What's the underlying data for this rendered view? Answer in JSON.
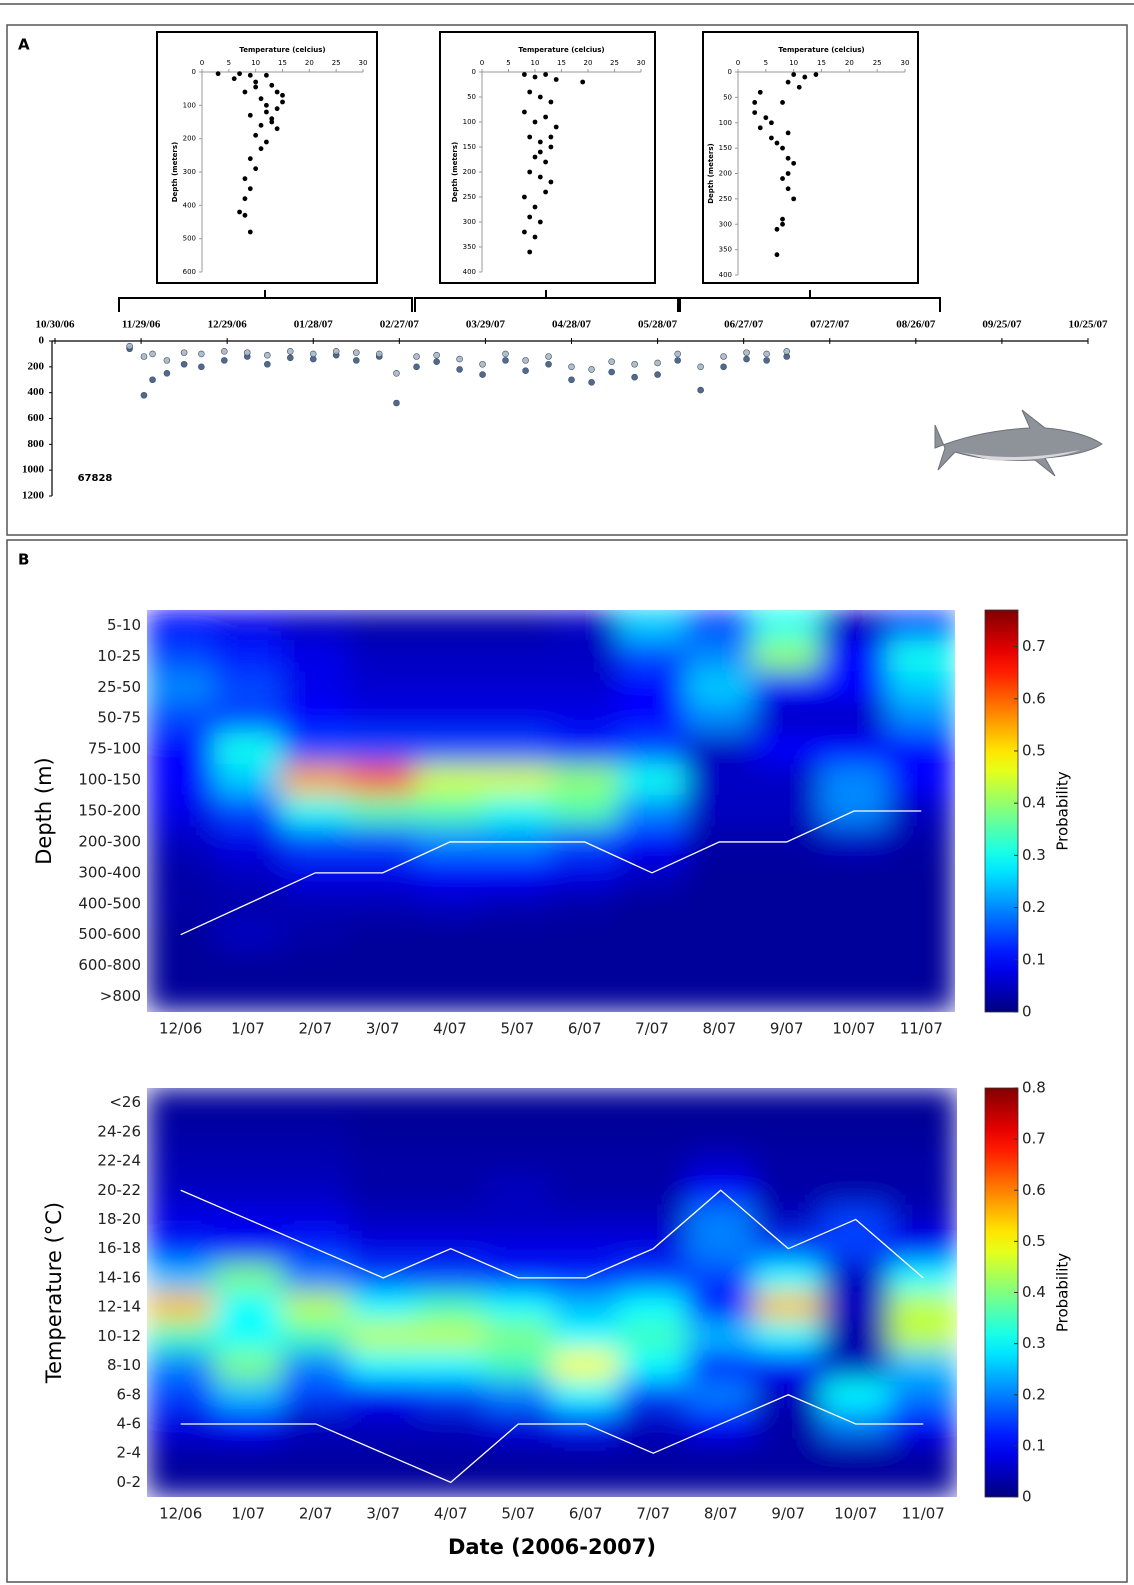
{
  "chart_data": [
    {
      "type": "scatter",
      "x_axis": "top",
      "y_reversed": true,
      "xlabel": "Temperature (celcius)",
      "ylabel": "Depth (meters)",
      "color": "#000000",
      "xlim": [
        0,
        30
      ],
      "xticks": [
        0,
        5,
        10,
        15,
        20,
        25,
        30
      ],
      "ylim": [
        0,
        600
      ],
      "yticks": [
        0,
        100,
        200,
        300,
        400,
        500,
        600
      ],
      "series": [
        {
          "color": "#000000",
          "x": [
            3,
            7,
            9,
            12,
            10,
            13,
            8,
            14,
            11,
            15,
            12,
            14,
            9,
            13,
            11,
            14,
            10,
            12,
            11,
            9,
            10,
            8,
            9,
            8,
            7,
            9,
            8,
            13,
            15,
            12,
            6,
            10
          ],
          "values": [
            5,
            5,
            10,
            10,
            30,
            40,
            60,
            60,
            80,
            90,
            100,
            110,
            130,
            140,
            160,
            170,
            190,
            210,
            230,
            260,
            290,
            320,
            350,
            380,
            420,
            480,
            430,
            150,
            70,
            120,
            20,
            45
          ]
        }
      ]
    },
    {
      "type": "scatter",
      "x_axis": "top",
      "y_reversed": true,
      "xlabel": "Temperature (celcius)",
      "ylabel": "Depth (meters)",
      "xlim": [
        0,
        30
      ],
      "xticks": [
        0,
        5,
        10,
        15,
        20,
        25,
        30
      ],
      "ylim": [
        0,
        400
      ],
      "yticks": [
        0,
        50,
        100,
        150,
        200,
        250,
        300,
        350,
        400
      ],
      "series": [
        {
          "color": "#000000",
          "x": [
            8,
            10,
            12,
            14,
            19,
            9,
            11,
            13,
            8,
            12,
            10,
            14,
            9,
            11,
            13,
            10,
            12,
            9,
            11,
            13,
            8,
            12,
            10,
            9,
            11,
            8,
            10,
            9,
            13,
            11
          ],
          "values": [
            5,
            10,
            5,
            15,
            20,
            40,
            50,
            60,
            80,
            90,
            100,
            110,
            130,
            140,
            150,
            170,
            180,
            200,
            210,
            220,
            250,
            240,
            270,
            290,
            300,
            320,
            330,
            360,
            130,
            160
          ]
        }
      ]
    },
    {
      "type": "scatter",
      "x_axis": "top",
      "y_reversed": true,
      "xlabel": "Temperature (celcius)",
      "ylabel": "Depth (meters)",
      "xlim": [
        0,
        30
      ],
      "xticks": [
        0,
        5,
        10,
        15,
        20,
        25,
        30
      ],
      "ylim": [
        0,
        400
      ],
      "yticks": [
        0,
        50,
        100,
        150,
        200,
        250,
        300,
        350,
        400
      ],
      "series": [
        {
          "color": "#000000",
          "x": [
            10,
            12,
            14,
            9,
            11,
            4,
            3,
            3,
            5,
            4,
            6,
            8,
            9,
            7,
            8,
            9,
            10,
            9,
            8,
            9,
            10,
            8,
            7,
            8,
            7,
            6
          ],
          "values": [
            5,
            10,
            5,
            20,
            30,
            40,
            60,
            80,
            90,
            110,
            100,
            60,
            120,
            140,
            150,
            170,
            180,
            200,
            210,
            230,
            250,
            290,
            310,
            300,
            360,
            130
          ]
        }
      ]
    },
    {
      "type": "scatter",
      "x_axis": "top",
      "y_reversed": true,
      "panel_label": "A",
      "annotation": "67828",
      "xlim": [
        "10/30/06",
        "10/25/07"
      ],
      "xticks": [
        "10/30/06",
        "11/29/06",
        "12/29/06",
        "01/28/07",
        "02/27/07",
        "03/29/07",
        "04/28/07",
        "05/28/07",
        "06/27/07",
        "07/27/07",
        "08/26/07",
        "09/25/07",
        "10/25/07"
      ],
      "ylim": [
        0,
        1200
      ],
      "yticks": [
        0,
        200,
        400,
        600,
        800,
        1000,
        1200
      ],
      "x": [
        "11/25/06",
        "11/30/06",
        "12/03/06",
        "12/08/06",
        "12/14/06",
        "12/20/06",
        "12/28/06",
        "01/05/07",
        "01/12/07",
        "01/20/07",
        "01/28/07",
        "02/05/07",
        "02/12/07",
        "02/20/07",
        "02/26/07",
        "03/05/07",
        "03/12/07",
        "03/20/07",
        "03/28/07",
        "04/05/07",
        "04/12/07",
        "04/20/07",
        "04/28/07",
        "05/05/07",
        "05/12/07",
        "05/20/07",
        "05/28/07",
        "06/04/07",
        "06/12/07",
        "06/20/07",
        "06/28/07",
        "07/05/07",
        "07/12/07"
      ],
      "series": [
        {
          "color": "#3d5a80",
          "values": [
            60,
            420,
            300,
            250,
            180,
            200,
            150,
            120,
            180,
            130,
            140,
            110,
            150,
            120,
            480,
            200,
            160,
            220,
            260,
            150,
            230,
            180,
            300,
            320,
            240,
            280,
            260,
            150,
            380,
            200,
            140,
            150,
            120
          ]
        },
        {
          "color": "#a9b6c4",
          "values": [
            40,
            120,
            100,
            150,
            90,
            100,
            80,
            90,
            110,
            80,
            100,
            80,
            90,
            100,
            250,
            120,
            110,
            140,
            180,
            100,
            150,
            120,
            200,
            220,
            160,
            180,
            170,
            100,
            200,
            120,
            90,
            100,
            80
          ]
        }
      ]
    },
    {
      "type": "heatmap",
      "panel_label": "B",
      "ylabel": "Depth (m)",
      "colorbar_label": "Probability",
      "categories": [
        "12/06",
        "1/07",
        "2/07",
        "3/07",
        "4/07",
        "5/07",
        "6/07",
        "7/07",
        "8/07",
        "9/07",
        "10/07",
        "11/07"
      ],
      "rows": [
        "5-10",
        "10-25",
        "25-50",
        "50-75",
        "75-100",
        "100-150",
        "150-200",
        "200-300",
        "300-400",
        "400-500",
        "500-600",
        "600-800",
        ">800"
      ],
      "zlim": [
        0,
        0.77
      ],
      "zticks": [
        0,
        0.1,
        0.2,
        0.3,
        0.4,
        0.5,
        0.6,
        0.7
      ],
      "z": [
        [
          0.1,
          0.08,
          0.05,
          0.03,
          0.03,
          0.03,
          0.05,
          0.25,
          0.15,
          0.3,
          0.05,
          0.15
        ],
        [
          0.15,
          0.12,
          0.08,
          0.05,
          0.05,
          0.05,
          0.05,
          0.15,
          0.2,
          0.4,
          0.1,
          0.3
        ],
        [
          0.2,
          0.15,
          0.08,
          0.06,
          0.06,
          0.06,
          0.06,
          0.1,
          0.25,
          0.1,
          0.1,
          0.25
        ],
        [
          0.15,
          0.15,
          0.1,
          0.08,
          0.08,
          0.08,
          0.08,
          0.1,
          0.2,
          0.05,
          0.05,
          0.2
        ],
        [
          0.1,
          0.3,
          0.15,
          0.15,
          0.15,
          0.15,
          0.12,
          0.15,
          0.05,
          0.1,
          0.1,
          0.1
        ],
        [
          0.1,
          0.25,
          0.55,
          0.6,
          0.45,
          0.45,
          0.4,
          0.3,
          0.05,
          0.05,
          0.2,
          0.1
        ],
        [
          0.08,
          0.15,
          0.3,
          0.35,
          0.35,
          0.3,
          0.35,
          0.2,
          0.05,
          0.05,
          0.2,
          0.05
        ],
        [
          0.05,
          0.08,
          0.15,
          0.15,
          0.2,
          0.2,
          0.15,
          0.1,
          0.03,
          0.03,
          0.05,
          0.03
        ],
        [
          0.03,
          0.05,
          0.08,
          0.08,
          0.1,
          0.1,
          0.08,
          0.05,
          0.02,
          0.02,
          0.02,
          0.02
        ],
        [
          0.03,
          0.03,
          0.04,
          0.04,
          0.05,
          0.04,
          0.03,
          0.02,
          0.02,
          0.02,
          0.02,
          0.02
        ],
        [
          0.02,
          0.05,
          0.03,
          0.02,
          0.02,
          0.02,
          0.02,
          0.02,
          0.02,
          0.02,
          0.02,
          0.02
        ],
        [
          0.02,
          0.02,
          0.02,
          0.02,
          0.02,
          0.02,
          0.02,
          0.02,
          0.02,
          0.02,
          0.02,
          0.02
        ],
        [
          0.02,
          0.02,
          0.02,
          0.02,
          0.02,
          0.02,
          0.02,
          0.02,
          0.02,
          0.02,
          0.02,
          0.02
        ]
      ],
      "lines": [
        {
          "color": "#ffffff",
          "values": [
            "500-600",
            "400-500",
            "300-400",
            "300-400",
            "200-300",
            "200-300",
            "200-300",
            "300-400",
            "200-300",
            "200-300",
            "150-200",
            "150-200"
          ]
        }
      ]
    },
    {
      "type": "heatmap",
      "ylabel": "Temperature (°C)",
      "colorbar_label": "Probability",
      "xlabel": "Date (2006-2007)",
      "categories": [
        "12/06",
        "1/07",
        "2/07",
        "3/07",
        "4/07",
        "5/07",
        "6/07",
        "7/07",
        "8/07",
        "9/07",
        "10/07",
        "11/07"
      ],
      "rows": [
        "<26",
        "24-26",
        "22-24",
        "20-22",
        "18-20",
        "16-18",
        "14-16",
        "12-14",
        "10-12",
        "8-10",
        "6-8",
        "4-6",
        "2-4",
        "0-2"
      ],
      "zlim": [
        0,
        0.8
      ],
      "zticks": [
        0,
        0.1,
        0.2,
        0.3,
        0.4,
        0.5,
        0.6,
        0.7,
        0.8
      ],
      "z": [
        [
          0.02,
          0.02,
          0.02,
          0.02,
          0.02,
          0.02,
          0.02,
          0.02,
          0.02,
          0.02,
          0.02,
          0.02
        ],
        [
          0.03,
          0.03,
          0.03,
          0.02,
          0.02,
          0.02,
          0.02,
          0.02,
          0.02,
          0.02,
          0.02,
          0.02
        ],
        [
          0.04,
          0.04,
          0.04,
          0.03,
          0.03,
          0.03,
          0.03,
          0.03,
          0.05,
          0.03,
          0.03,
          0.03
        ],
        [
          0.05,
          0.05,
          0.05,
          0.03,
          0.03,
          0.05,
          0.03,
          0.03,
          0.1,
          0.03,
          0.03,
          0.03
        ],
        [
          0.08,
          0.08,
          0.08,
          0.05,
          0.05,
          0.05,
          0.05,
          0.05,
          0.2,
          0.05,
          0.15,
          0.05
        ],
        [
          0.12,
          0.1,
          0.12,
          0.08,
          0.08,
          0.08,
          0.08,
          0.08,
          0.2,
          0.15,
          0.15,
          0.1
        ],
        [
          0.25,
          0.4,
          0.2,
          0.15,
          0.15,
          0.12,
          0.12,
          0.15,
          0.15,
          0.3,
          0.05,
          0.3
        ],
        [
          0.55,
          0.3,
          0.45,
          0.3,
          0.35,
          0.3,
          0.25,
          0.3,
          0.1,
          0.55,
          0.05,
          0.45
        ],
        [
          0.35,
          0.3,
          0.35,
          0.45,
          0.45,
          0.4,
          0.3,
          0.35,
          0.25,
          0.3,
          0.03,
          0.45
        ],
        [
          0.2,
          0.4,
          0.2,
          0.3,
          0.3,
          0.35,
          0.5,
          0.3,
          0.1,
          0.1,
          0.05,
          0.25
        ],
        [
          0.15,
          0.25,
          0.15,
          0.1,
          0.15,
          0.2,
          0.3,
          0.15,
          0.2,
          0.05,
          0.3,
          0.2
        ],
        [
          0.08,
          0.1,
          0.05,
          0.05,
          0.05,
          0.08,
          0.12,
          0.05,
          0.1,
          0.03,
          0.2,
          0.1
        ],
        [
          0.03,
          0.03,
          0.03,
          0.03,
          0.03,
          0.03,
          0.03,
          0.03,
          0.03,
          0.03,
          0.03,
          0.03
        ],
        [
          0.02,
          0.02,
          0.02,
          0.02,
          0.02,
          0.02,
          0.02,
          0.02,
          0.02,
          0.02,
          0.02,
          0.02
        ]
      ],
      "lines": [
        {
          "color": "#ffffff",
          "values": [
            "20-22",
            "18-20",
            "16-18",
            "14-16",
            "16-18",
            "14-16",
            "14-16",
            "16-18",
            "20-22",
            "16-18",
            "18-20",
            "14-16"
          ]
        },
        {
          "color": "#ffffff",
          "values": [
            "4-6",
            "4-6",
            "4-6",
            "2-4",
            "0-2",
            "4-6",
            "4-6",
            "2-4",
            "4-6",
            "6-8",
            "4-6",
            "4-6"
          ]
        }
      ]
    }
  ]
}
